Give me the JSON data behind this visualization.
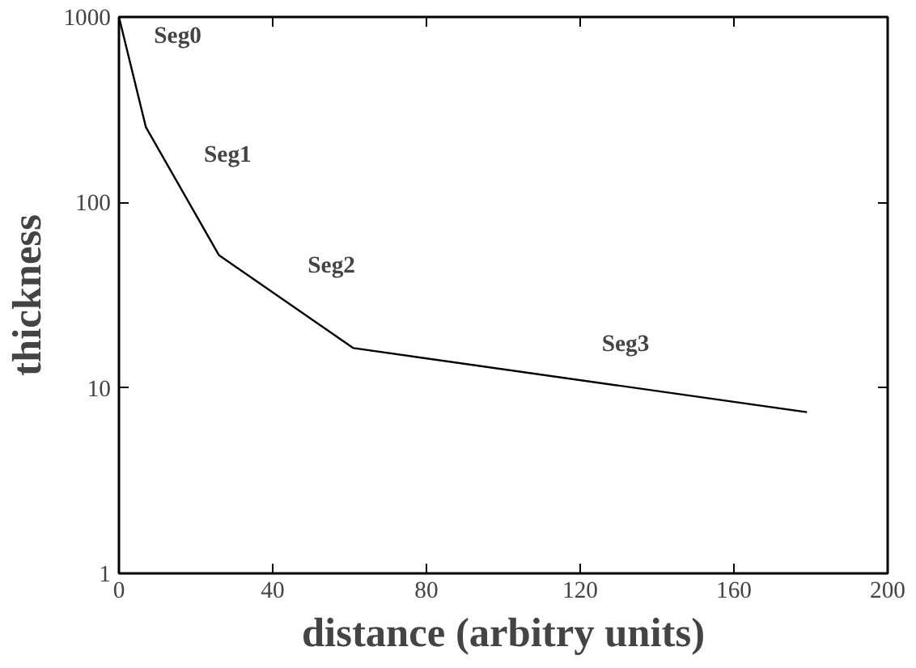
{
  "chart_data": {
    "type": "line",
    "xlabel": "distance (arbitry units)",
    "ylabel": "thickness",
    "x": [
      0,
      7,
      26,
      61,
      179
    ],
    "series": [
      {
        "color": "#000000",
        "values": [
          1000,
          255,
          52,
          16.4,
          7.4
        ]
      }
    ],
    "xlim": [
      0,
      200
    ],
    "xticks": [
      0,
      40,
      80,
      120,
      160,
      200
    ],
    "ylim": [
      1,
      1000
    ],
    "yticks": [
      1,
      10,
      100,
      1000
    ],
    "log": "y",
    "grid": false,
    "marker": "none",
    "line_style": "solid",
    "annotations": [
      "Seg0",
      "Seg1",
      "Seg2",
      "Seg3"
    ]
  }
}
